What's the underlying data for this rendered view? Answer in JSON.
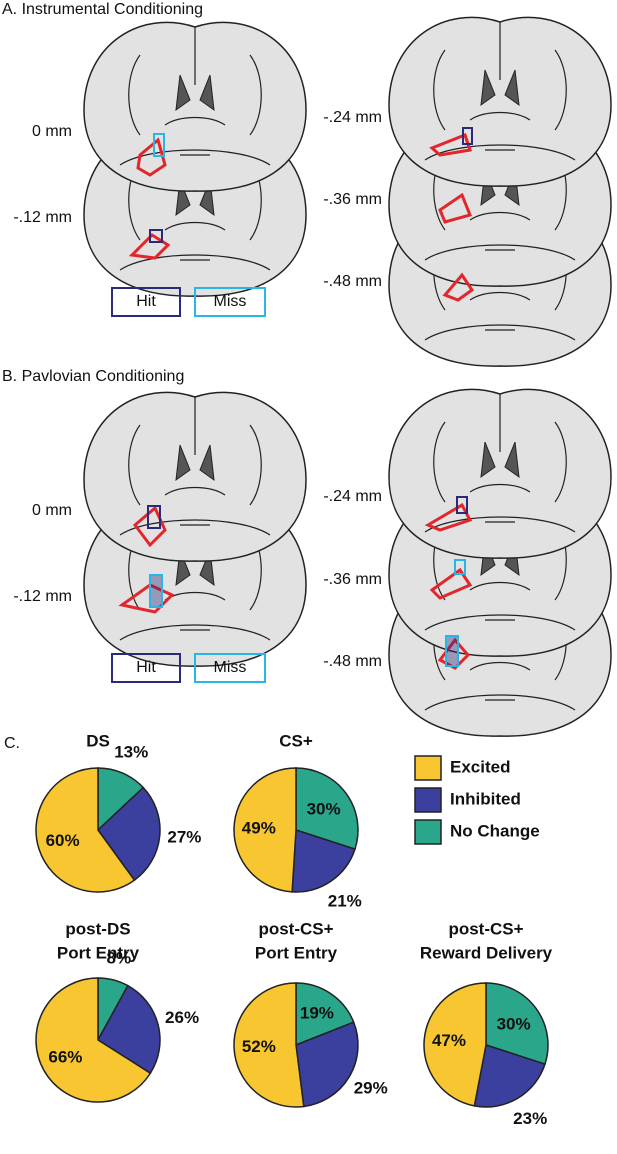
{
  "panel_a": {
    "title": "A. Instrumental Conditioning",
    "depths": [
      "0 mm",
      "-.12 mm",
      "-.24 mm",
      "-.36 mm",
      "-.48 mm"
    ],
    "key": [
      "Hit",
      "Miss"
    ]
  },
  "panel_b": {
    "title": "B. Pavlovian Conditioning",
    "depths": [
      "0 mm",
      "-.12 mm",
      "-.24 mm",
      "-.36 mm",
      "-.48 mm"
    ],
    "key": [
      "Hit",
      "Miss"
    ]
  },
  "panel_c": {
    "title": "C."
  },
  "legend": {
    "labels": [
      "Excited",
      "Inhibited",
      "No Change"
    ],
    "colors": [
      "#f8c630",
      "#3b3f9e",
      "#2aa68b"
    ]
  },
  "chart_data": [
    {
      "type": "pie",
      "title": [
        "DS"
      ],
      "values": [
        60,
        27,
        13
      ],
      "value_labels": [
        "60%",
        "27%",
        "13%"
      ]
    },
    {
      "type": "pie",
      "title": [
        "CS+"
      ],
      "values": [
        49,
        21,
        30
      ],
      "value_labels": [
        "49%",
        "21%",
        "30%"
      ]
    },
    {
      "type": "pie",
      "title": [
        "post-DS",
        "Port Entry"
      ],
      "values": [
        66,
        26,
        8
      ],
      "value_labels": [
        "66%",
        "26%",
        "8%"
      ]
    },
    {
      "type": "pie",
      "title": [
        "post-CS+",
        "Port Entry"
      ],
      "values": [
        52,
        29,
        19
      ],
      "value_labels": [
        "52%",
        "29%",
        "19%"
      ]
    },
    {
      "type": "pie",
      "title": [
        "post-CS+",
        "Reward Delivery"
      ],
      "values": [
        47,
        23,
        30
      ],
      "value_labels": [
        "47%",
        "23%",
        "30%"
      ]
    }
  ]
}
